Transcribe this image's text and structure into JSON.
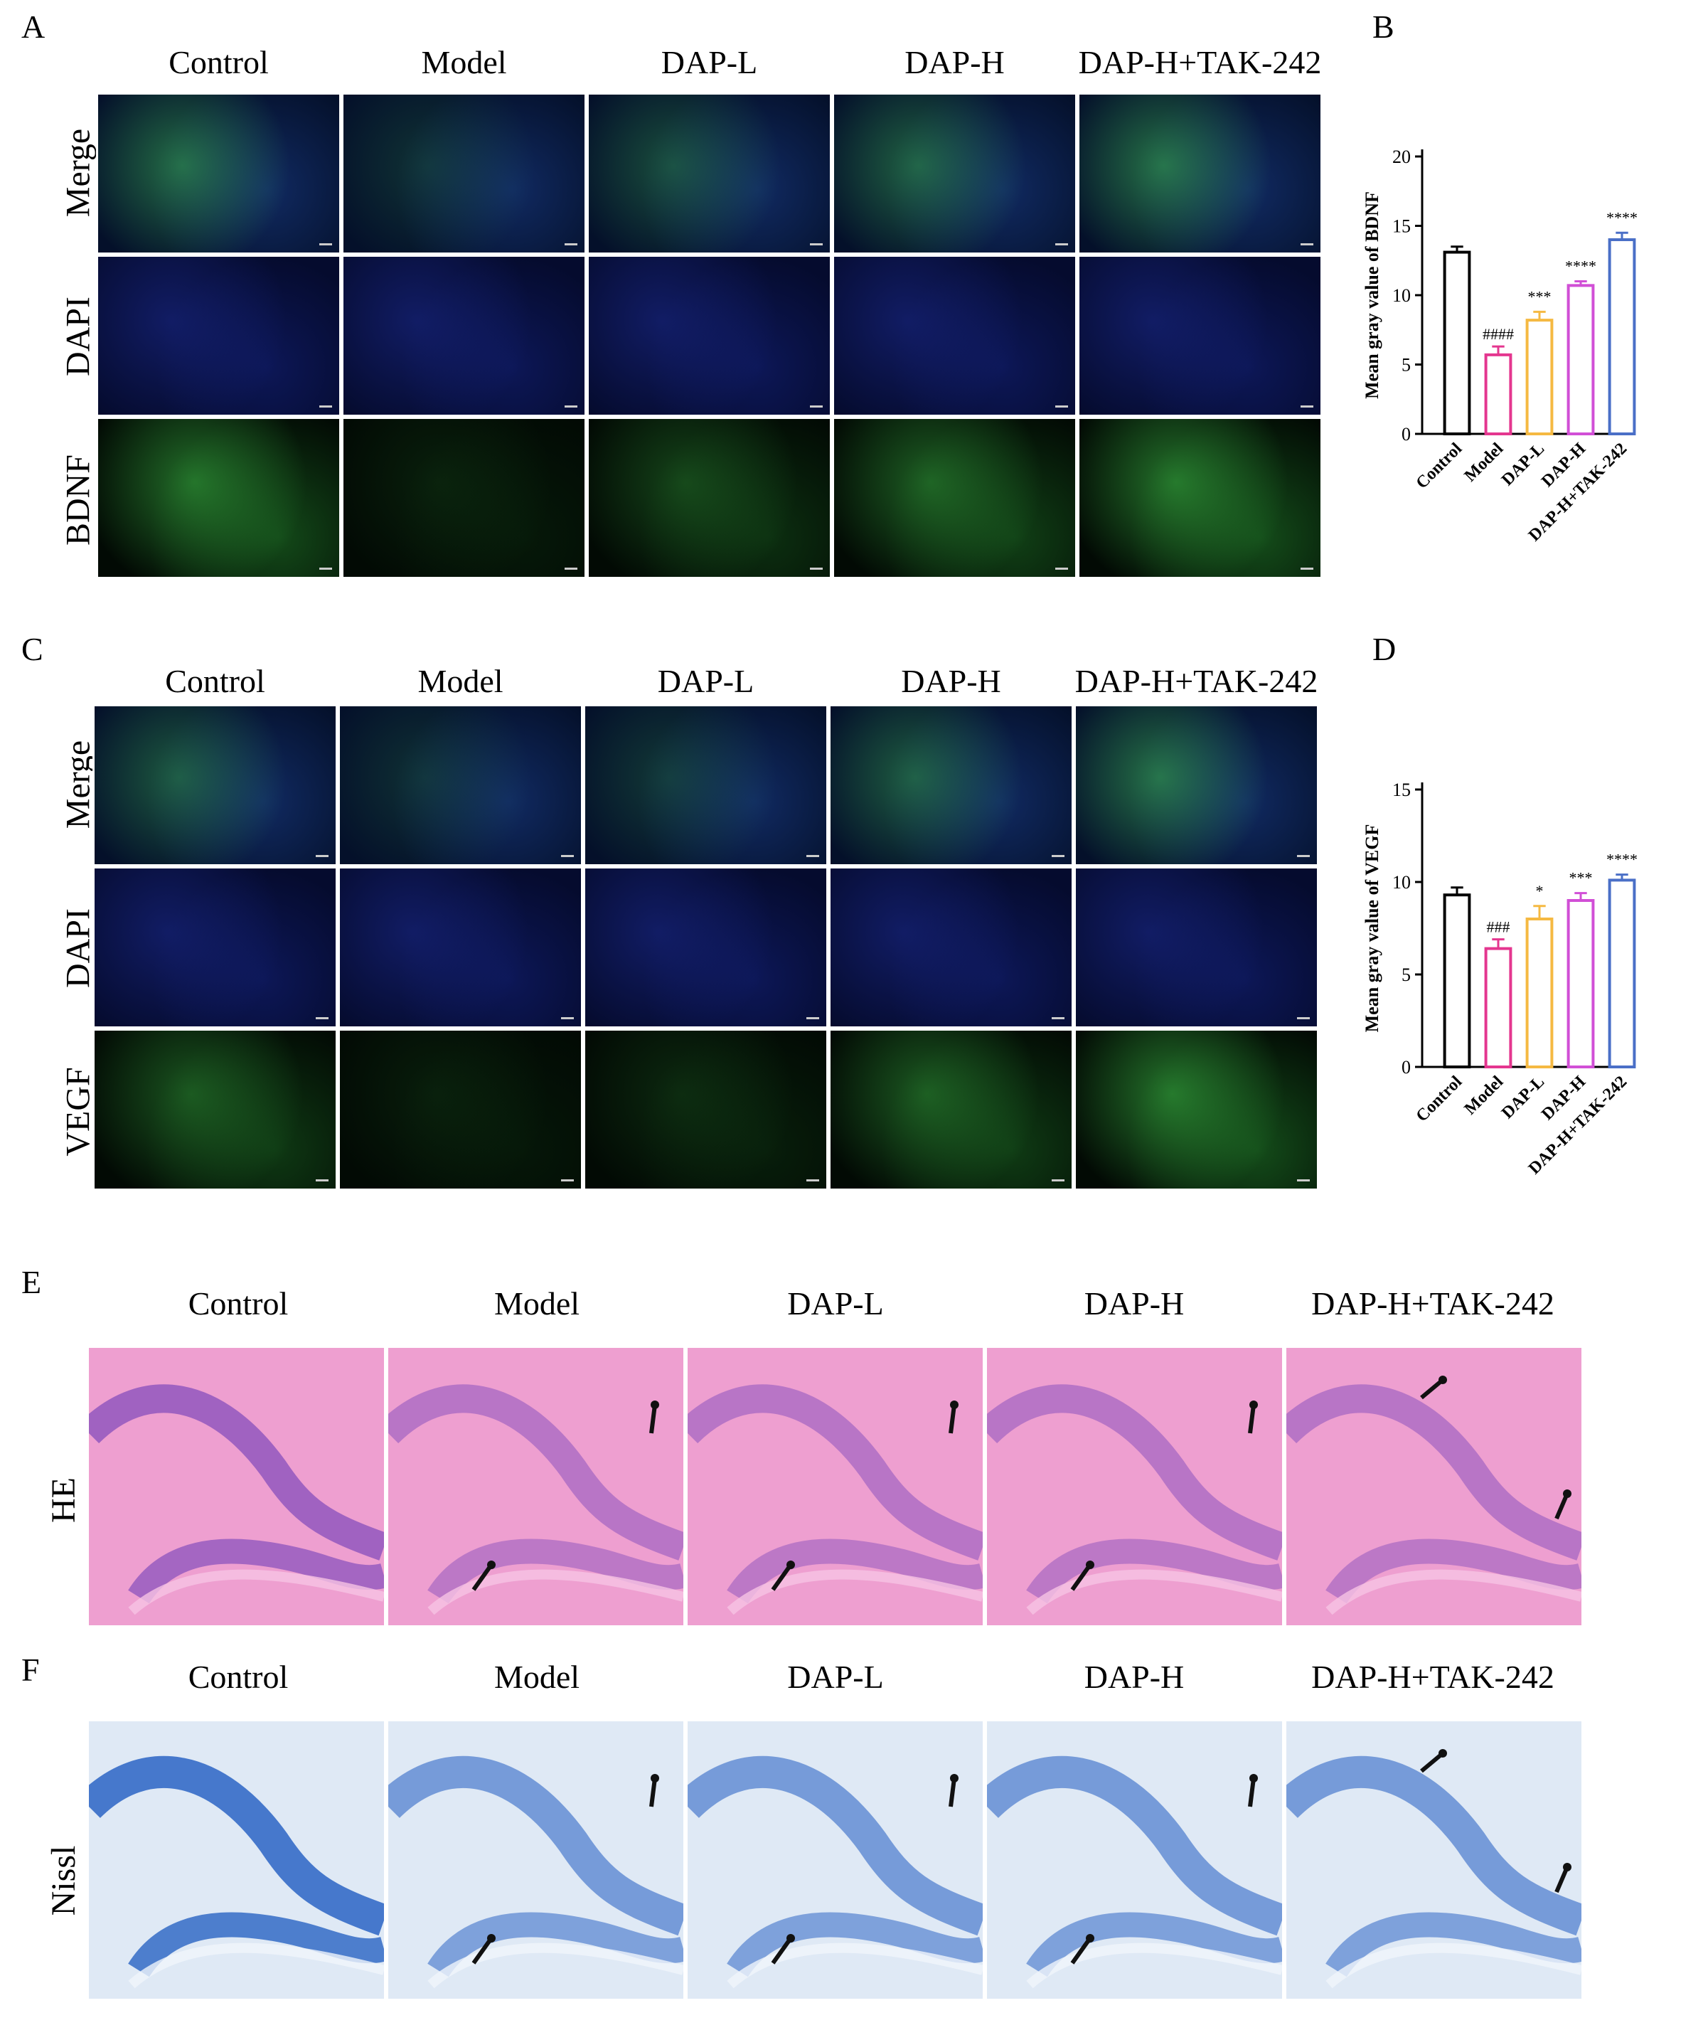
{
  "panel_letters": {
    "a": "A",
    "b": "B",
    "c": "C",
    "d": "D",
    "e": "E",
    "f": "F"
  },
  "groups": [
    "Control",
    "Model",
    "DAP-L",
    "DAP-H",
    "DAP-H+TAK-242"
  ],
  "panel_a": {
    "rows": [
      {
        "label": "Merge",
        "tint": "merge"
      },
      {
        "label": "DAPI",
        "tint": "dapi"
      },
      {
        "label": "BDNF",
        "tint": "green"
      }
    ],
    "green_intensity": [
      0.85,
      0.12,
      0.45,
      0.7,
      0.9
    ]
  },
  "panel_c": {
    "rows": [
      {
        "label": "Merge",
        "tint": "merge"
      },
      {
        "label": "DAPI",
        "tint": "dapi"
      },
      {
        "label": "VEGF",
        "tint": "green"
      }
    ],
    "green_intensity": [
      0.6,
      0.1,
      0.2,
      0.65,
      0.9
    ]
  },
  "panel_e": {
    "row_label": "HE"
  },
  "panel_f": {
    "row_label": "Nissl"
  },
  "chart_data": [
    {
      "type": "bar",
      "panel": "B",
      "categories": [
        "Control",
        "Model",
        "DAP-L",
        "DAP-H",
        "DAP-H+TAK-242"
      ],
      "values": [
        13.1,
        5.7,
        8.2,
        10.7,
        14.0
      ],
      "errors": [
        0.4,
        0.6,
        0.6,
        0.3,
        0.5
      ],
      "annotations": [
        "",
        "####",
        "***",
        "****",
        "****"
      ],
      "ylabel": "Mean gray value of BDNF",
      "ylim": [
        0,
        20
      ],
      "yticks": [
        0,
        5,
        10,
        15,
        20
      ],
      "colors": [
        "#000000",
        "#e4368f",
        "#f5b942",
        "#d14fd6",
        "#4a6fc7"
      ]
    },
    {
      "type": "bar",
      "panel": "D",
      "categories": [
        "Control",
        "Model",
        "DAP-L",
        "DAP-H",
        "DAP-H+TAK-242"
      ],
      "values": [
        9.3,
        6.4,
        8.0,
        9.0,
        10.1
      ],
      "errors": [
        0.4,
        0.5,
        0.7,
        0.4,
        0.3
      ],
      "annotations": [
        "",
        "###",
        "*",
        "***",
        "****"
      ],
      "ylabel": "Mean gray value of VEGF",
      "ylim": [
        0,
        15
      ],
      "yticks": [
        0,
        5,
        10,
        15
      ],
      "colors": [
        "#000000",
        "#e4368f",
        "#f5b942",
        "#d14fd6",
        "#4a6fc7"
      ]
    }
  ]
}
